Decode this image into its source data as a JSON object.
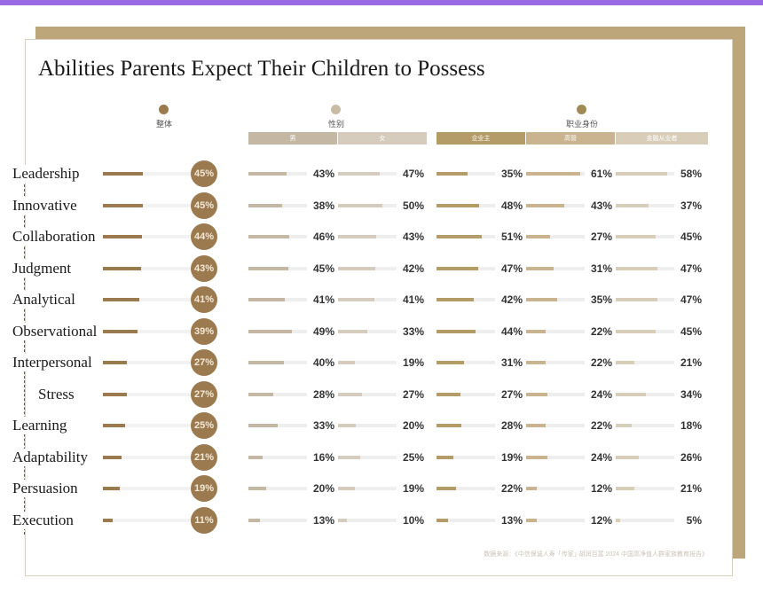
{
  "title": "Abilities Parents Expect Their Children to Possess",
  "groups": {
    "overall": {
      "label": "整体",
      "color": "#9a7a4e"
    },
    "gender": {
      "label": "性别",
      "color": "#c8bba5"
    },
    "occupation": {
      "label": "职业身份",
      "color": "#a08a56"
    }
  },
  "subheaders": {
    "male": "男",
    "female": "女",
    "entrepreneur": "企业主",
    "executive": "高管",
    "finance": "金融从业者"
  },
  "colors": {
    "overall": "#9a7a4e",
    "male": "#c4b8a4",
    "female": "#d5ccbd",
    "entrepreneur": "#b49c68",
    "executive": "#c9b48f",
    "finance": "#d8cdb8"
  },
  "source_note": "数据来源：《中信保诚人寿「传家」·胡润百富 2024 中国高净值人群家族教育报告》",
  "chart_data": {
    "type": "bar",
    "title": "Abilities Parents Expect Their Children to Possess",
    "categories": [
      "Leadership",
      "Innovative",
      "Collaboration",
      "Judgment",
      "Analytical",
      "Observational",
      "Interpersonal",
      "Stress",
      "Learning",
      "Adaptability",
      "Persuasion",
      "Execution"
    ],
    "series": [
      {
        "name": "整体",
        "values": [
          45,
          45,
          44,
          43,
          41,
          39,
          27,
          27,
          25,
          21,
          19,
          11
        ]
      },
      {
        "name": "男",
        "values": [
          43,
          38,
          46,
          45,
          41,
          49,
          40,
          28,
          33,
          16,
          20,
          13
        ]
      },
      {
        "name": "女",
        "values": [
          47,
          50,
          43,
          42,
          41,
          33,
          19,
          27,
          20,
          25,
          19,
          10
        ]
      },
      {
        "name": "企业主",
        "values": [
          35,
          48,
          51,
          47,
          42,
          44,
          31,
          27,
          28,
          19,
          22,
          13
        ]
      },
      {
        "name": "高管",
        "values": [
          61,
          43,
          27,
          31,
          35,
          22,
          22,
          24,
          22,
          24,
          12,
          12
        ]
      },
      {
        "name": "金融从业者",
        "values": [
          58,
          37,
          45,
          47,
          47,
          45,
          21,
          34,
          18,
          26,
          21,
          5
        ]
      }
    ],
    "unit": "%",
    "ylim": [
      0,
      100
    ]
  }
}
